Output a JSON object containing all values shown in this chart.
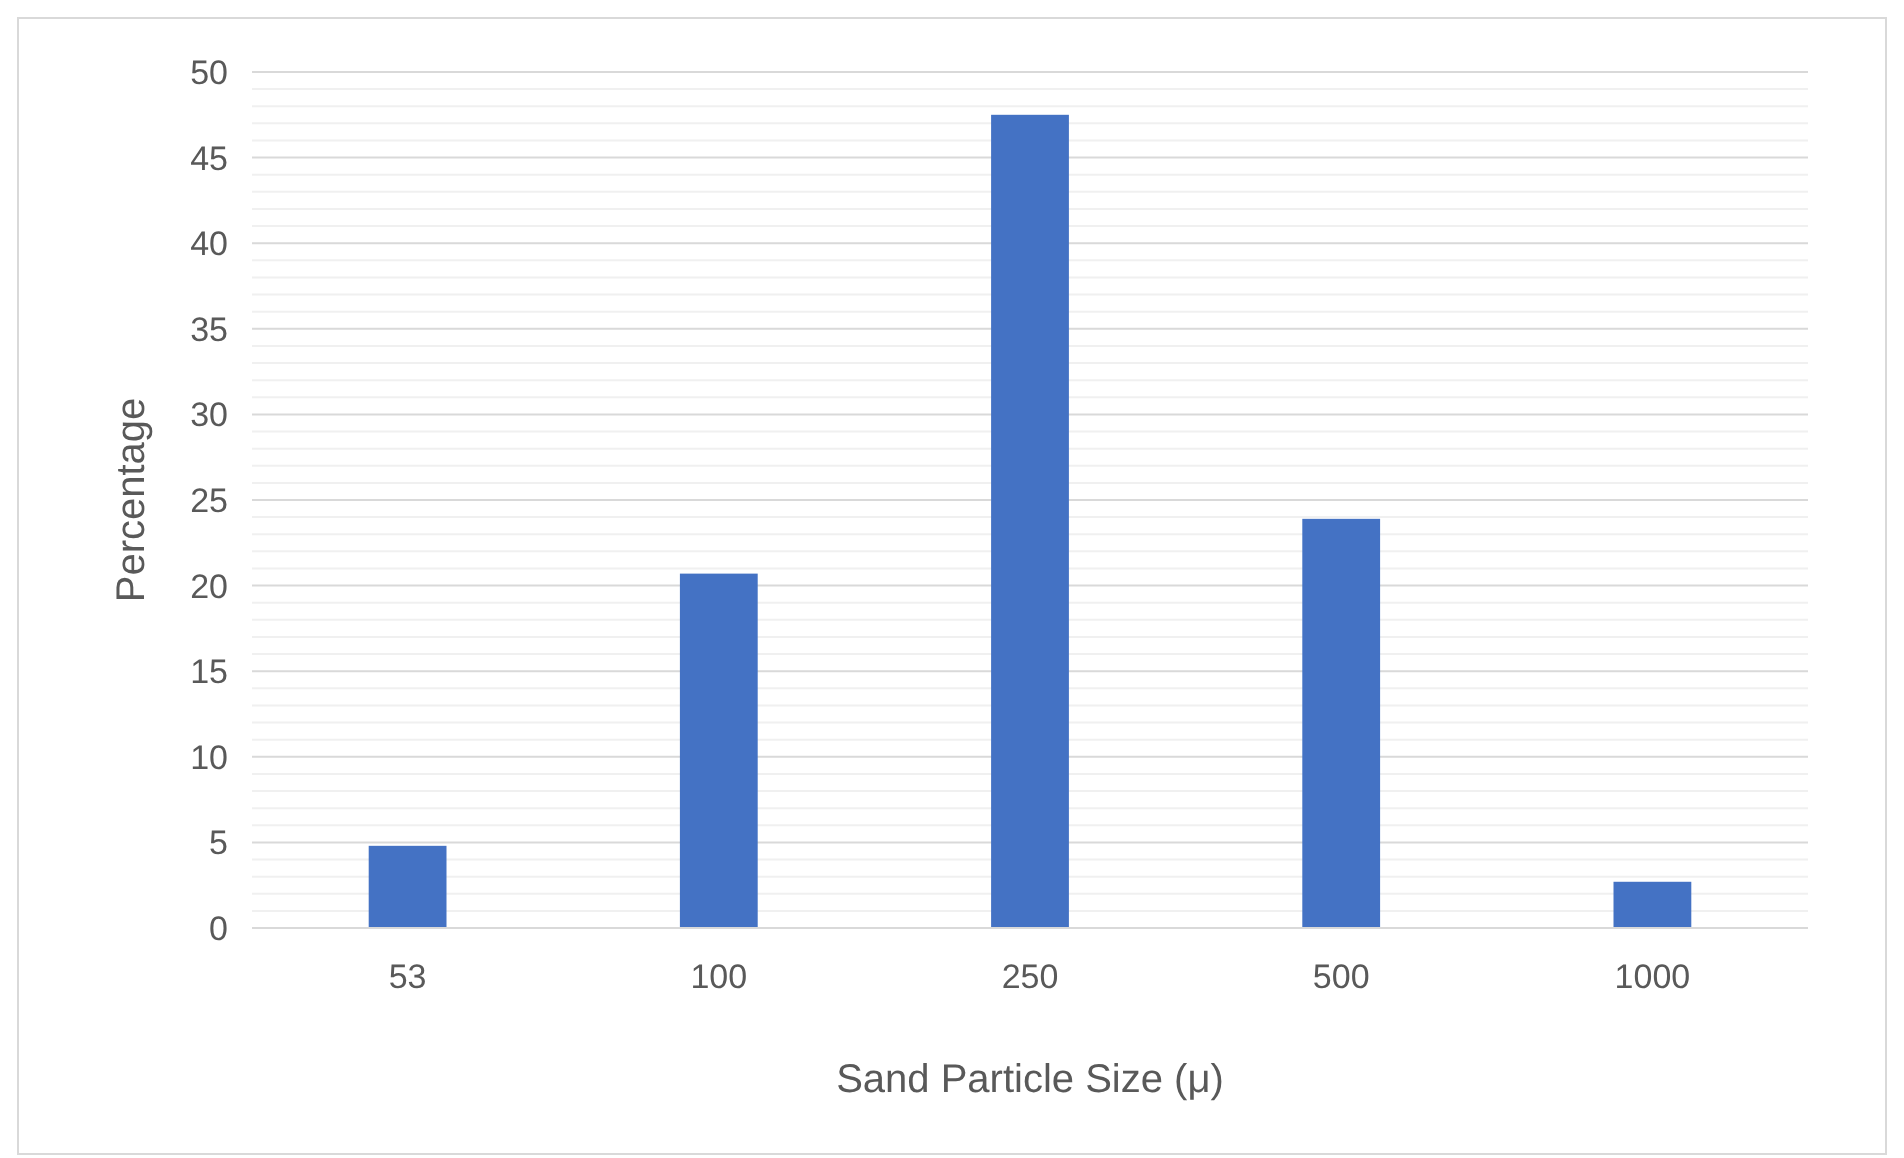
{
  "chart_data": {
    "type": "bar",
    "xlabel": "Sand Particle Size (μ)",
    "ylabel": "Percentage",
    "categories": [
      "53",
      "100",
      "250",
      "500",
      "1000"
    ],
    "values": [
      4.8,
      20.7,
      47.5,
      23.9,
      2.7
    ],
    "color": "#4472c4",
    "ylim": [
      0,
      50
    ],
    "yticks": [
      0,
      5,
      10,
      15,
      20,
      25,
      30,
      35,
      40,
      45,
      50
    ],
    "grid": true
  }
}
